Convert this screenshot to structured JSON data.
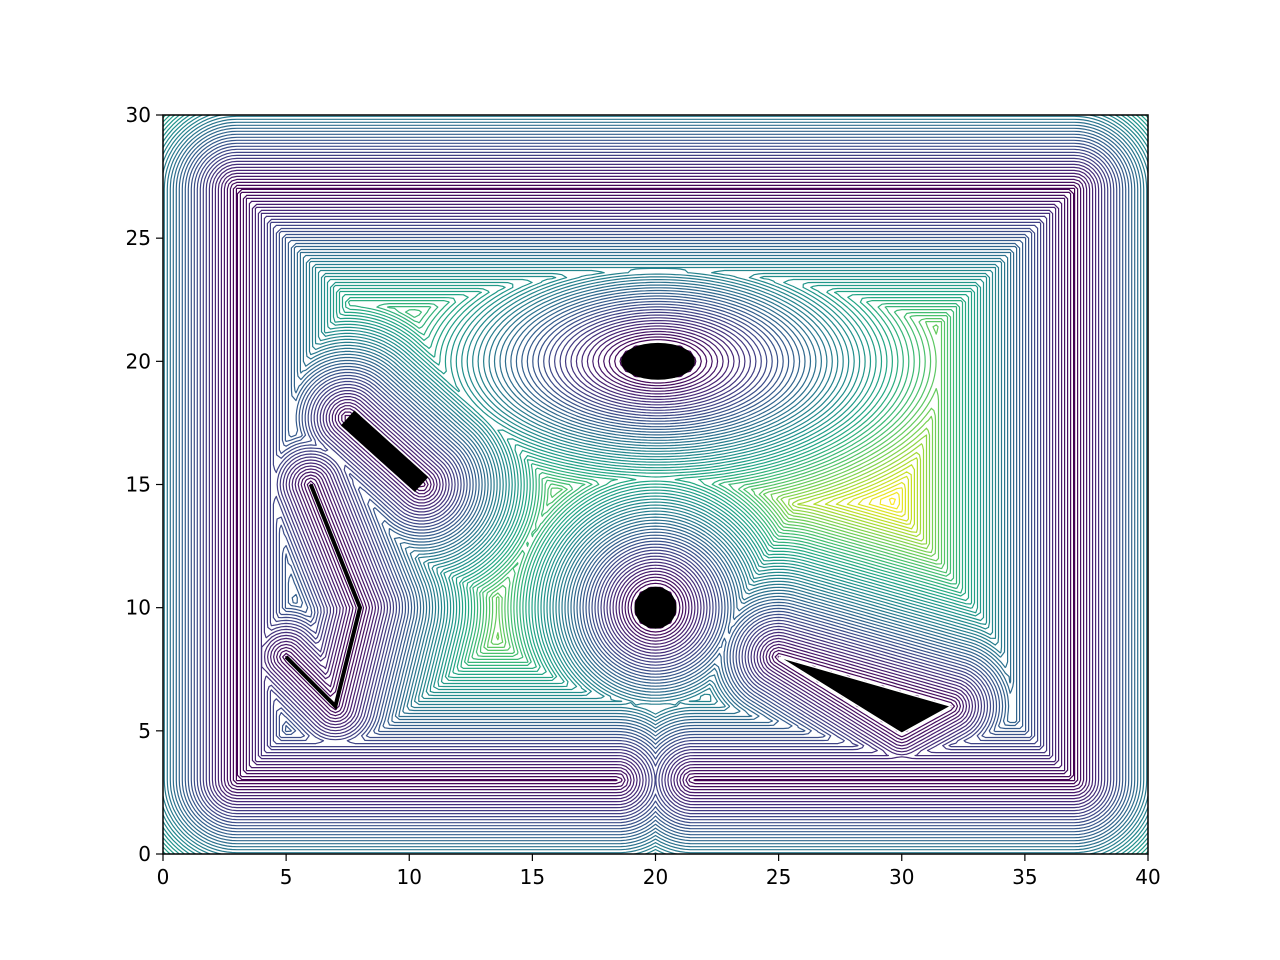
{
  "chart_data": {
    "type": "contour",
    "title": "",
    "xlabel": "",
    "ylabel": "",
    "xlim": [
      0,
      40
    ],
    "ylim": [
      0,
      30
    ],
    "x_ticks": [
      0,
      5,
      10,
      15,
      20,
      25,
      30,
      35,
      40
    ],
    "y_ticks": [
      0,
      5,
      10,
      15,
      20,
      25,
      30
    ],
    "x_tick_labels": [
      "0",
      "5",
      "10",
      "15",
      "20",
      "25",
      "30",
      "35",
      "40"
    ],
    "y_tick_labels": [
      "0",
      "5",
      "10",
      "15",
      "20",
      "25",
      "30"
    ],
    "colormap": "viridis",
    "contour_levels": 60,
    "grid": false,
    "field": "distance to nearest obstacle (wall or filled obstacle)",
    "max_value_estimate": 8.8,
    "obstacles": [
      {
        "kind": "wall-loop",
        "points": [
          [
            3,
            3
          ],
          [
            3,
            27
          ],
          [
            37,
            27
          ],
          [
            37,
            3
          ],
          [
            21.5,
            3
          ]
        ]
      },
      {
        "kind": "wall-segment",
        "points": [
          [
            3,
            3
          ],
          [
            18.5,
            3
          ]
        ]
      },
      {
        "kind": "segment",
        "points": [
          [
            7.5,
            17.7
          ],
          [
            10.5,
            15
          ]
        ]
      },
      {
        "kind": "polyline",
        "points": [
          [
            6,
            15
          ],
          [
            8,
            10
          ],
          [
            7,
            6
          ],
          [
            5,
            8
          ]
        ]
      },
      {
        "kind": "circle",
        "center": [
          20,
          10
        ],
        "r": 0.85
      },
      {
        "kind": "ellipse",
        "center": [
          20.1,
          20
        ],
        "rx": 1.5,
        "ry": 0.75
      },
      {
        "kind": "triangle",
        "points": [
          [
            25,
            8
          ],
          [
            32,
            6
          ],
          [
            30,
            4.9
          ]
        ]
      }
    ]
  }
}
